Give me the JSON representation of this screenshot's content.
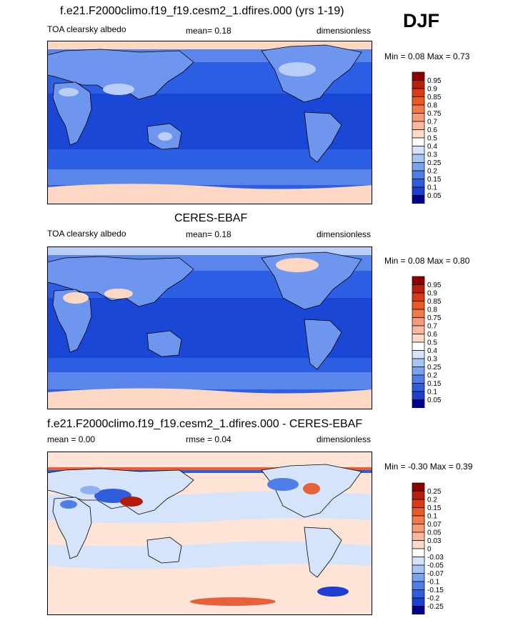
{
  "season": "DJF",
  "panels": [
    {
      "title": "f.e21.F2000climo.f19_f19.cesm2_1.dfires.000 (yrs 1-19)",
      "left_label": "TOA clearsky albedo",
      "mid_label": "mean=  0.18",
      "right_label": "dimensionless",
      "minmax": "Min =  0.08 Max =  0.73",
      "colorbar": {
        "labels": [
          "0.95",
          "0.9",
          "0.85",
          "0.8",
          "0.75",
          "0.7",
          "0.6",
          "0.5",
          "0.4",
          "0.3",
          "0.25",
          "0.2",
          "0.15",
          "0.1",
          "0.05"
        ],
        "colors": [
          "#8b0000",
          "#b81e0c",
          "#d93a14",
          "#ea5a26",
          "#f2794a",
          "#f69b77",
          "#fab99e",
          "#fdd9c7",
          "#ffffff",
          "#d6e4fb",
          "#a6c4f4",
          "#7aa3ee",
          "#4f7fe6",
          "#2f5ddc",
          "#1d3fcf",
          "#00008b"
        ]
      }
    },
    {
      "title": "CERES-EBAF",
      "left_label": "TOA clearsky albedo",
      "mid_label": "mean=  0.18",
      "right_label": "dimensionless",
      "minmax": "Min =  0.08 Max =  0.80",
      "colorbar": {
        "labels": [
          "0.95",
          "0.9",
          "0.85",
          "0.8",
          "0.75",
          "0.7",
          "0.6",
          "0.5",
          "0.4",
          "0.3",
          "0.25",
          "0.2",
          "0.15",
          "0.1",
          "0.05"
        ],
        "colors": [
          "#8b0000",
          "#b81e0c",
          "#d93a14",
          "#ea5a26",
          "#f2794a",
          "#f69b77",
          "#fab99e",
          "#fdd9c7",
          "#ffffff",
          "#d6e4fb",
          "#a6c4f4",
          "#7aa3ee",
          "#4f7fe6",
          "#2f5ddc",
          "#1d3fcf",
          "#00008b"
        ]
      }
    },
    {
      "title": "f.e21.F2000climo.f19_f19.cesm2_1.dfires.000 - CERES-EBAF",
      "left_label": "mean =   0.00",
      "mid_label": "rmse =   0.04",
      "right_label": "dimensionless",
      "minmax": "Min =  -0.30 Max =   0.39",
      "colorbar": {
        "labels": [
          "0.25",
          "0.2",
          "0.15",
          "0.1",
          "0.07",
          "0.05",
          "0.03",
          "0",
          "-0.03",
          "-0.05",
          "-0.07",
          "-0.1",
          "-0.15",
          "-0.2",
          "-0.25"
        ],
        "colors": [
          "#8b0000",
          "#b81e0c",
          "#d93a14",
          "#ea5a26",
          "#f2794a",
          "#f69b77",
          "#fab99e",
          "#fdd9c7",
          "#ffffff",
          "#d6e4fb",
          "#a6c4f4",
          "#7aa3ee",
          "#4f7fe6",
          "#2f5ddc",
          "#1d3fcf",
          "#00008b"
        ]
      }
    }
  ],
  "map_colors": {
    "ocean_tropics": "#1a47d6",
    "ocean_mid": "#2c5fe3",
    "ocean_high": "#5a86ec",
    "land_dark": "#6f96ee",
    "land_light": "#b9cff7",
    "ice": "#fbd7c4",
    "ice_bright": "#f4a584",
    "diff_base": "#fde4d6",
    "diff_neg": "#d6e4fb",
    "diff_negmid": "#8fb0f2",
    "diff_pos": "#e8603a",
    "diff_posdark": "#b31c0c"
  }
}
